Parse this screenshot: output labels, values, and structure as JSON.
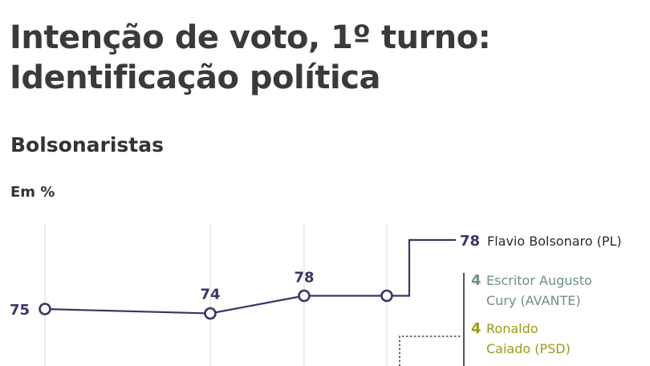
{
  "header": {
    "title_line1": "Intenção de voto, 1º turno:",
    "title_line2": "Identificação política",
    "subtitle": "Bolsonaristas",
    "unit": "Em %"
  },
  "colors": {
    "flavio": "#3b3566",
    "cury": "#6f8f8d",
    "caiado": "#9a9a1c",
    "grid": "#d9d9d9"
  },
  "chart_data": {
    "type": "line",
    "unit": "Em %",
    "series": [
      {
        "name": "Flavio Bolsonaro (PL)",
        "values": [
          75,
          74,
          78,
          78
        ],
        "value_labels": [
          "75",
          "74",
          "78",
          ""
        ]
      }
    ],
    "legend": [
      {
        "value": "78",
        "lines": [
          "Flavio Bolsonaro (PL)"
        ],
        "color": "#3b3566"
      },
      {
        "value": "4",
        "lines": [
          "Escritor Augusto",
          "Cury (AVANTE)"
        ],
        "color": "#6f8f8d"
      },
      {
        "value": "4",
        "lines": [
          "Ronaldo",
          "Caiado (PSD)"
        ],
        "color": "#9a9a1c"
      }
    ],
    "grid": true,
    "legend_position": "right"
  }
}
